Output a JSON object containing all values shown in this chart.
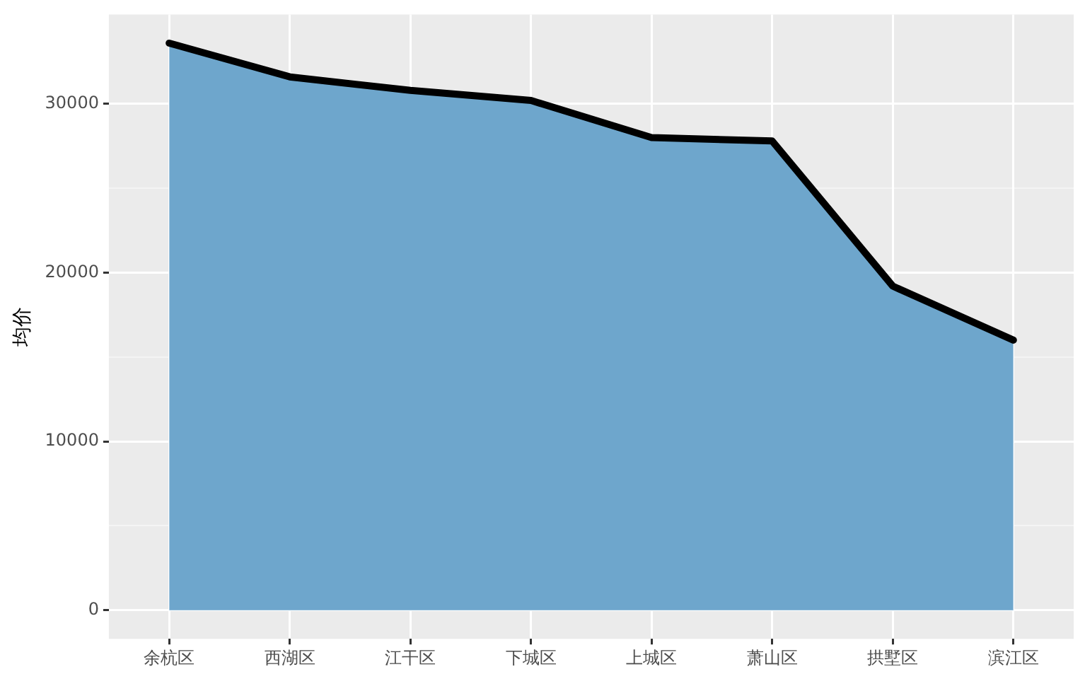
{
  "chart_data": {
    "type": "area",
    "ylabel": "均价",
    "categories": [
      "余杭区",
      "西湖区",
      "江干区",
      "下城区",
      "上城区",
      "萧山区",
      "拱墅区",
      "滨江区"
    ],
    "series": [
      {
        "color": "#6ea6cc",
        "values": [
          33600,
          31600,
          30800,
          30200,
          28000,
          27800,
          19200,
          16000
        ]
      }
    ],
    "ylim": [
      -1700,
      35300
    ],
    "yticks": [
      0,
      {
        "value": 5000,
        "label": null
      },
      10000,
      {
        "value": 15000,
        "label": null
      },
      20000,
      {
        "value": 25000,
        "label": null
      },
      30000
    ],
    "grid": true,
    "legend": false
  }
}
